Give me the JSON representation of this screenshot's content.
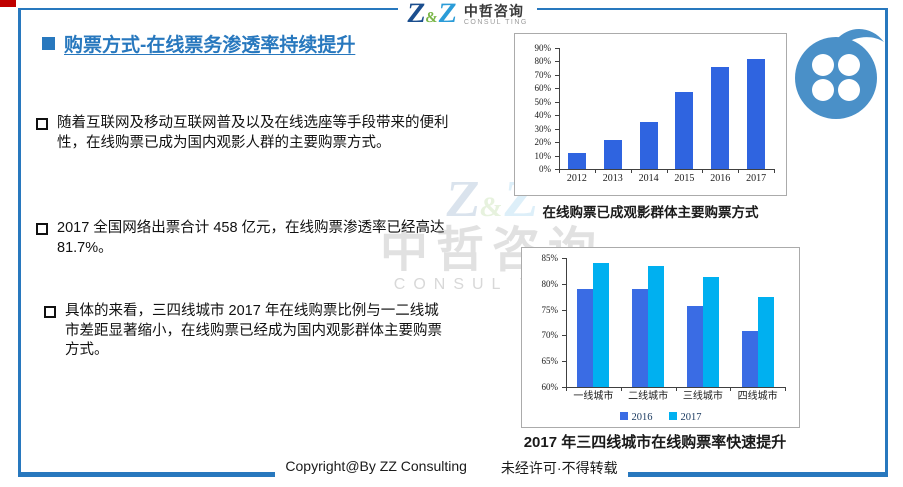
{
  "logo": {
    "z1": "Z",
    "amp": "&",
    "z2": "Z",
    "cn": "中哲咨询",
    "en": "CONSUL TING"
  },
  "header": {
    "title": "购票方式-在线票务渗透率持续提升"
  },
  "bullets": [
    {
      "text": "随着互联网及移动互联网普及以及在线选座等手段带来的便利性，在线购票已成为国内观影人群的主要购票方式。"
    },
    {
      "text": "2017 全国网络出票合计 458 亿元，在线购票渗透率已经高达 81.7%。"
    },
    {
      "text": "具体的来看，三四线城市 2017 年在线购票比例与一二线城市差距显著缩小，在线购票已经成为国内观影群体主要购票方式。"
    }
  ],
  "watermark": {
    "z1": "Z",
    "amp": "&",
    "z2": "Z",
    "cn": "中哲咨询",
    "en": "CONSUL TING"
  },
  "footer": {
    "copyright": "Copyright@By ZZ Consulting",
    "notice": "未经许可·不得转载"
  },
  "colors": {
    "accent_red": "#c00000",
    "frame_blue": "#2878be",
    "title_blue": "#2878be",
    "icon_blue": "#4a90c8",
    "bar_blue": "#2f64e0",
    "bar_blue_2016": "#3a6ce4",
    "bar_cyan_2017": "#00b0f0"
  },
  "chart_data": [
    {
      "type": "bar",
      "title": "在线购票已成观影群体主要购票方式",
      "categories": [
        "2012",
        "2013",
        "2014",
        "2015",
        "2016",
        "2017"
      ],
      "values": [
        12,
        21.5,
        35,
        57,
        76,
        81.7
      ],
      "xlabel": "",
      "ylabel": "",
      "ylim": [
        0,
        90
      ],
      "ytick_step": 10,
      "ytick_format": "percent",
      "grid": false,
      "bar_color": "#2f64e0"
    },
    {
      "type": "bar",
      "title": "2017 年三四线城市在线购票率快速提升",
      "categories": [
        "一线城市",
        "二线城市",
        "三线城市",
        "四线城市"
      ],
      "series": [
        {
          "name": "2016",
          "values": [
            79,
            78.9,
            75.7,
            70.9
          ],
          "color": "#3a6ce4"
        },
        {
          "name": "2017",
          "values": [
            84,
            83.5,
            81.3,
            77.5
          ],
          "color": "#00b0f0"
        }
      ],
      "xlabel": "",
      "ylabel": "",
      "ylim": [
        60,
        85
      ],
      "ytick_step": 5,
      "ytick_format": "percent",
      "grid": false,
      "legend_position": "bottom"
    }
  ]
}
